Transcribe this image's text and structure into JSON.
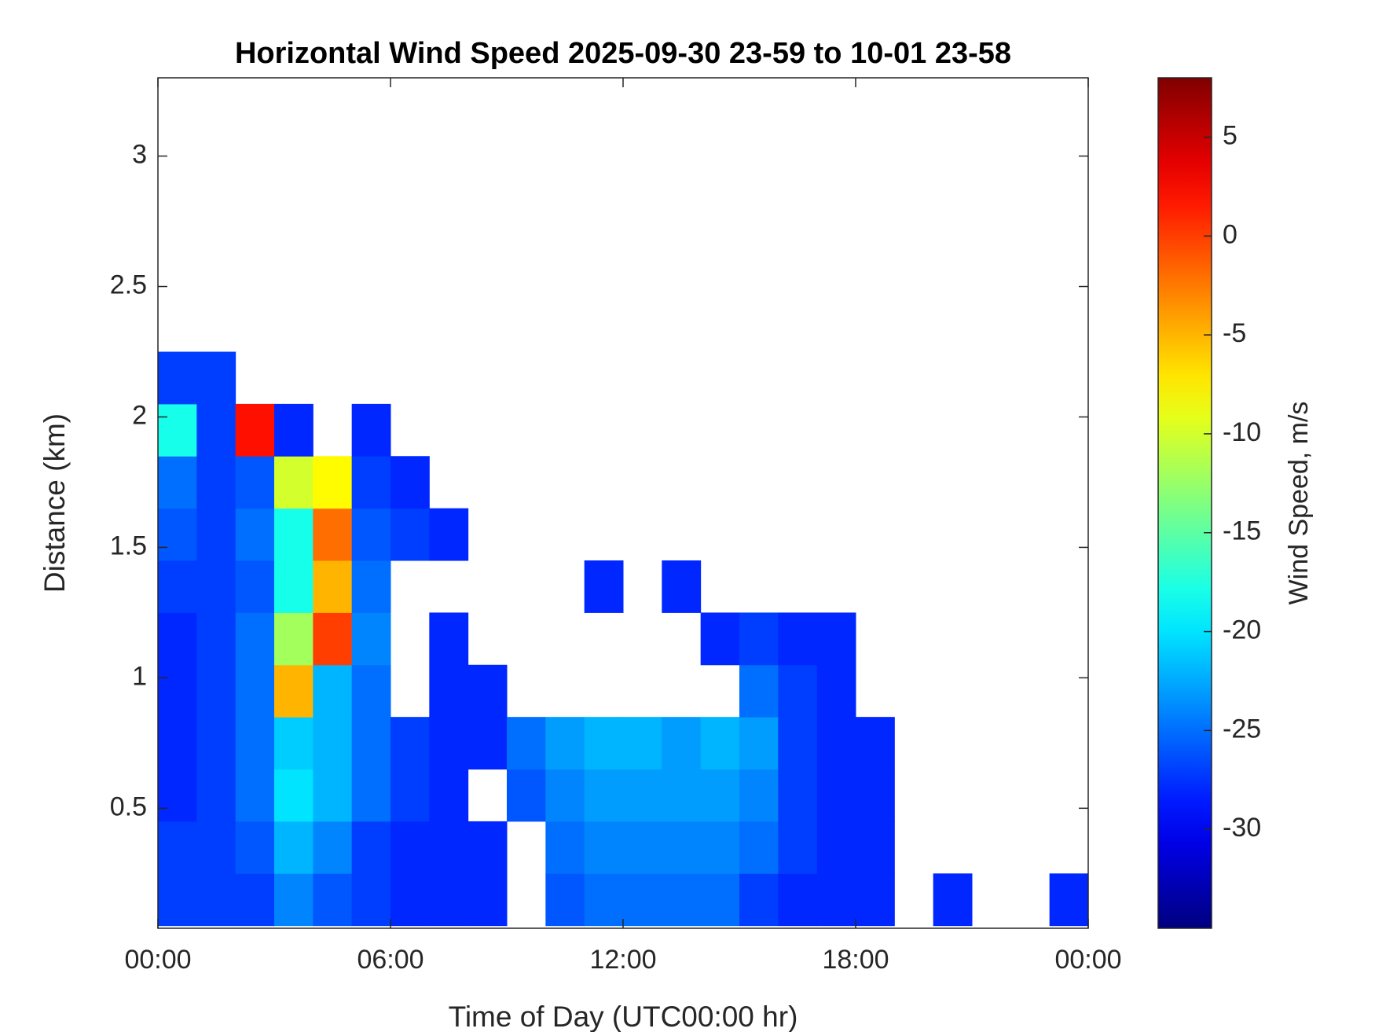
{
  "chart_data": {
    "type": "heatmap",
    "title": "Horizontal Wind Speed 2025-09-30 23-59 to 10-01 23-58",
    "x_label": "Time of Day (UTC00:00 hr)",
    "y_label": "Distance (km)",
    "colorbar_label": "Wind Speed, m/s",
    "colormap": "jet",
    "xbins": [
      0,
      1,
      2,
      3,
      4,
      5,
      6,
      7,
      8,
      9,
      10,
      11,
      12,
      13,
      14,
      15,
      16,
      17,
      18,
      19,
      20,
      21,
      22,
      23,
      24
    ],
    "ybins": [
      0.05,
      0.25,
      0.45,
      0.65,
      0.85,
      1.05,
      1.25,
      1.45,
      1.65,
      1.85,
      2.05,
      2.25
    ],
    "z": [
      [
        -27,
        -27,
        -27,
        -24,
        -26,
        -27,
        -28,
        -28,
        -28,
        null,
        -26,
        -25,
        -25,
        -25,
        -25,
        -27,
        -28,
        -28,
        -28,
        null,
        -28,
        null,
        null,
        -28
      ],
      [
        -27,
        -27,
        -26,
        -22,
        -24,
        -27,
        -28,
        -28,
        -28,
        null,
        -25,
        -24,
        -24,
        -24,
        -24,
        -25,
        -27,
        -28,
        -28,
        null,
        null,
        null,
        null,
        null
      ],
      [
        -28,
        -27,
        -25,
        -20,
        -22,
        -25,
        -27,
        -28,
        null,
        -26,
        -24,
        -23,
        -23,
        -23,
        -23,
        -24,
        -27,
        -28,
        -28,
        null,
        null,
        null,
        null,
        null
      ],
      [
        -28,
        -27,
        -25,
        -21,
        -22,
        -25,
        -27,
        -28,
        -28,
        -25,
        -23,
        -22,
        -22,
        -23,
        -22,
        -23,
        -27,
        -28,
        -28,
        null,
        null,
        null,
        null,
        null
      ],
      [
        -28,
        -27,
        -25,
        -5,
        -22,
        -25,
        null,
        -28,
        -28,
        null,
        null,
        null,
        null,
        null,
        null,
        -25,
        -27,
        -28,
        null,
        null,
        null,
        null,
        null,
        null
      ],
      [
        -28,
        -27,
        -25,
        -12,
        0,
        -24,
        null,
        -28,
        null,
        null,
        null,
        null,
        null,
        null,
        -28,
        -27,
        -28,
        -28,
        null,
        null,
        null,
        null,
        null,
        null
      ],
      [
        -27,
        -27,
        -26,
        -18,
        -5,
        -25,
        null,
        null,
        null,
        null,
        null,
        -28,
        null,
        -28,
        null,
        null,
        null,
        null,
        null,
        null,
        null,
        null,
        null,
        null
      ],
      [
        -26,
        -27,
        -25,
        -18,
        -2,
        -26,
        -27,
        -28,
        null,
        null,
        null,
        null,
        null,
        null,
        null,
        null,
        null,
        null,
        null,
        null,
        null,
        null,
        null,
        null
      ],
      [
        -25,
        -27,
        -26,
        -10,
        -8,
        -27,
        -28,
        null,
        null,
        null,
        null,
        null,
        null,
        null,
        null,
        null,
        null,
        null,
        null,
        null,
        null,
        null,
        null,
        null
      ],
      [
        -18,
        -27,
        2,
        -28,
        null,
        -28,
        null,
        null,
        null,
        null,
        null,
        null,
        null,
        null,
        null,
        null,
        null,
        null,
        null,
        null,
        null,
        null,
        null,
        null
      ],
      [
        -27,
        -27,
        null,
        null,
        null,
        null,
        null,
        null,
        null,
        null,
        null,
        null,
        null,
        null,
        null,
        null,
        null,
        null,
        null,
        null,
        null,
        null,
        null,
        null
      ]
    ],
    "xlim": [
      0,
      24
    ],
    "xticks": [
      {
        "value": 0,
        "label": "00:00"
      },
      {
        "value": 6,
        "label": "06:00"
      },
      {
        "value": 12,
        "label": "12:00"
      },
      {
        "value": 18,
        "label": "18:00"
      },
      {
        "value": 24,
        "label": "00:00"
      }
    ],
    "ylim": [
      0.04,
      3.3
    ],
    "yticks": [
      0.5,
      1,
      1.5,
      2,
      2.5,
      3
    ],
    "clim": [
      -35,
      8
    ],
    "cticks": [
      -30,
      -25,
      -20,
      -15,
      -10,
      -5,
      0,
      5
    ]
  }
}
